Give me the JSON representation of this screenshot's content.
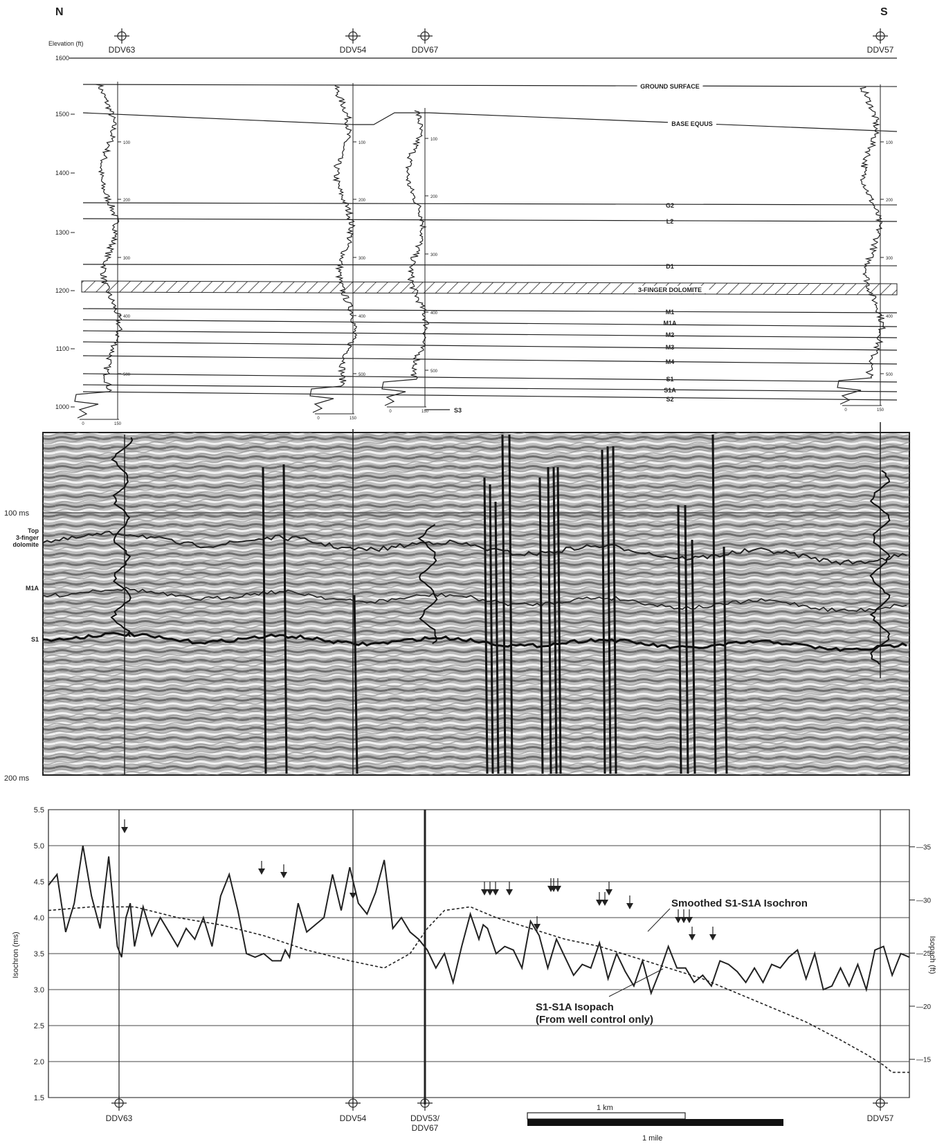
{
  "header": {
    "north": "N",
    "south": "S",
    "elevation_axis_label": "Elevation (ft)"
  },
  "wells_top": [
    {
      "name": "DDV63"
    },
    {
      "name": "DDV54"
    },
    {
      "name": "DDV67"
    },
    {
      "name": "DDV57"
    }
  ],
  "wells_bottom": [
    {
      "name": "DDV63"
    },
    {
      "name": "DDV54"
    },
    {
      "name": "DDV53/\nDDV67"
    },
    {
      "name": "DDV57"
    }
  ],
  "elevation_ticks": [
    "1600",
    "1500",
    "1400",
    "1300",
    "1200",
    "1100",
    "1000"
  ],
  "horizons": [
    {
      "name": "GROUND SURFACE"
    },
    {
      "name": "BASE EQUUS"
    },
    {
      "name": "G2"
    },
    {
      "name": "L2"
    },
    {
      "name": "D1"
    },
    {
      "name": "3-FINGER DOLOMITE"
    },
    {
      "name": "M1"
    },
    {
      "name": "M1A"
    },
    {
      "name": "M2"
    },
    {
      "name": "M3"
    },
    {
      "name": "M4"
    },
    {
      "name": "S1"
    },
    {
      "name": "S1A"
    },
    {
      "name": "S2"
    },
    {
      "name": "S3"
    }
  ],
  "log_depth_ticks": [
    "100",
    "200",
    "300",
    "400",
    "500"
  ],
  "log_scale_ticks": [
    "0",
    "150"
  ],
  "seismic": {
    "time_top": "100 ms",
    "time_bottom": "200 ms",
    "labels": [
      "Top\n3-finger\ndolomite",
      "M1A",
      "S1"
    ]
  },
  "chart_data": {
    "type": "line",
    "ylabel": "Isochron (ms)",
    "y2label": "Isopach (ft)",
    "ylim": [
      1.5,
      5.5
    ],
    "yticks": [
      "1.5",
      "2.0",
      "2.5",
      "3.0",
      "3.5",
      "4.0",
      "4.5",
      "5.0",
      "5.5"
    ],
    "y2lim": [
      11.4,
      38.5
    ],
    "y2ticks": [
      "15",
      "20",
      "25",
      "30",
      "35"
    ],
    "grid": true,
    "x_range": [
      0,
      1
    ],
    "series": [
      {
        "name": "Smoothed S1-S1A Isochron",
        "style": "solid",
        "x": [
          0.0,
          0.01,
          0.02,
          0.03,
          0.04,
          0.05,
          0.06,
          0.07,
          0.08,
          0.085,
          0.09,
          0.095,
          0.1,
          0.11,
          0.12,
          0.13,
          0.14,
          0.15,
          0.16,
          0.17,
          0.18,
          0.19,
          0.2,
          0.21,
          0.22,
          0.23,
          0.24,
          0.25,
          0.26,
          0.27,
          0.275,
          0.28,
          0.29,
          0.3,
          0.31,
          0.32,
          0.33,
          0.34,
          0.35,
          0.36,
          0.37,
          0.38,
          0.39,
          0.4,
          0.41,
          0.42,
          0.43,
          0.44,
          0.45,
          0.46,
          0.47,
          0.48,
          0.49,
          0.5,
          0.505,
          0.51,
          0.52,
          0.53,
          0.54,
          0.55,
          0.56,
          0.57,
          0.58,
          0.59,
          0.6,
          0.61,
          0.62,
          0.63,
          0.64,
          0.65,
          0.66,
          0.67,
          0.68,
          0.69,
          0.7,
          0.71,
          0.72,
          0.73,
          0.74,
          0.75,
          0.76,
          0.77,
          0.78,
          0.79,
          0.8,
          0.81,
          0.82,
          0.83,
          0.84,
          0.85,
          0.86,
          0.87,
          0.88,
          0.89,
          0.9,
          0.91,
          0.92,
          0.93,
          0.94,
          0.95,
          0.96,
          0.97,
          0.98,
          0.99,
          1.0
        ],
        "values": [
          4.45,
          4.6,
          3.8,
          4.2,
          5.0,
          4.3,
          3.85,
          4.85,
          3.6,
          3.45,
          4.0,
          4.2,
          3.6,
          4.15,
          3.75,
          4.0,
          3.8,
          3.6,
          3.85,
          3.7,
          4.0,
          3.6,
          4.3,
          4.6,
          4.1,
          3.5,
          3.45,
          3.5,
          3.4,
          3.4,
          3.55,
          3.45,
          4.2,
          3.8,
          3.9,
          4.0,
          4.6,
          4.1,
          4.7,
          4.2,
          4.05,
          4.35,
          4.8,
          3.85,
          4.0,
          3.8,
          3.7,
          3.55,
          3.3,
          3.5,
          3.1,
          3.6,
          4.05,
          3.7,
          3.9,
          3.85,
          3.5,
          3.6,
          3.55,
          3.3,
          3.95,
          3.75,
          3.3,
          3.7,
          3.45,
          3.2,
          3.35,
          3.3,
          3.65,
          3.15,
          3.5,
          3.25,
          3.05,
          3.4,
          2.95,
          3.25,
          3.6,
          3.3,
          3.3,
          3.1,
          3.2,
          3.05,
          3.4,
          3.35,
          3.25,
          3.1,
          3.3,
          3.1,
          3.35,
          3.3,
          3.45,
          3.55,
          3.15,
          3.5,
          3.0,
          3.05,
          3.3,
          3.05,
          3.35,
          3.0,
          3.55,
          3.6,
          3.2,
          3.5,
          3.45
        ]
      },
      {
        "name": "S1-S1A Isopach\n(From well control only)",
        "style": "dashed",
        "x": [
          0.0,
          0.05,
          0.1,
          0.15,
          0.2,
          0.25,
          0.3,
          0.35,
          0.39,
          0.42,
          0.44,
          0.46,
          0.49,
          0.52,
          0.56,
          0.6,
          0.64,
          0.68,
          0.72,
          0.76,
          0.8,
          0.84,
          0.88,
          0.92,
          0.95,
          0.97,
          0.98,
          1.0
        ],
        "values": [
          4.1,
          4.15,
          4.15,
          4.0,
          3.9,
          3.75,
          3.55,
          3.4,
          3.3,
          3.5,
          3.85,
          4.1,
          4.15,
          4.0,
          3.85,
          3.7,
          3.6,
          3.45,
          3.3,
          3.15,
          2.95,
          2.75,
          2.55,
          2.3,
          2.1,
          1.95,
          1.85,
          1.85
        ]
      }
    ],
    "annotations": [
      "Smoothed S1-S1A Isochron",
      "S1-S1A Isopach\n(From well control only)"
    ]
  },
  "scale_bar": {
    "km_label": "1 km",
    "mile_label": "1 mile"
  },
  "colors": {
    "line": "#222222",
    "grid": "#444444",
    "hatch": "#555555"
  }
}
